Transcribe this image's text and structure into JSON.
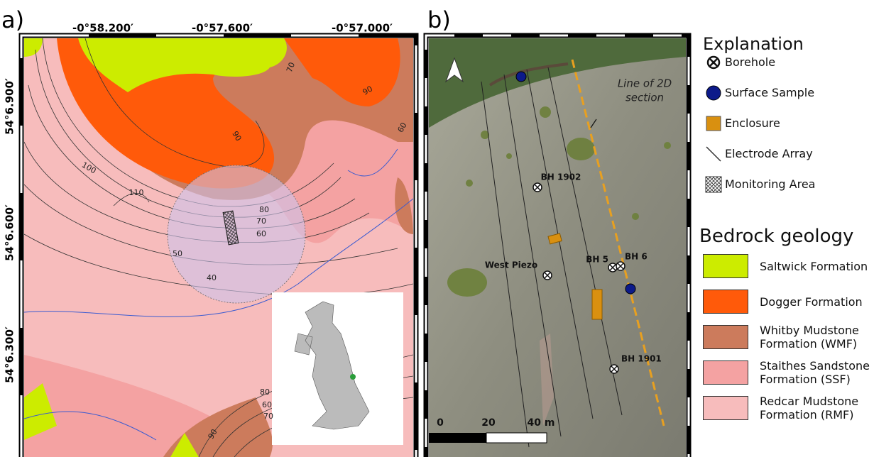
{
  "panels": [
    {
      "label": "a)",
      "longitudes": [
        "-0°58.200′",
        "-0°57.600′",
        "-0°57.000′"
      ],
      "latitudes": [
        "54°6.900′",
        "54°6.600′",
        "54°6.300′"
      ],
      "contour_labels": [
        70,
        90,
        60,
        90,
        100,
        110,
        80,
        70,
        60,
        50,
        40,
        60,
        70,
        80,
        90
      ]
    },
    {
      "label": "b)",
      "section_label": [
        "Line of 2D",
        "section"
      ],
      "boreholes": [
        "BH 1902",
        "West Piezo",
        "BH 5",
        "BH 6",
        "BH 1901"
      ],
      "scale_bar": [
        "0",
        "20",
        "40 m"
      ]
    }
  ],
  "legend": {
    "explanation_title": "Explanation",
    "explanation_items": [
      "Borehole",
      "Surface Sample",
      "Enclosure",
      "Electrode Array",
      "Monitoring Area"
    ],
    "geology_title": "Bedrock geology",
    "geology_items": [
      {
        "label": "Saltwick Formation",
        "color": "#ccec00"
      },
      {
        "label": "Dogger Formation",
        "color": "#ff5a0a"
      },
      {
        "label": "Whitby Mudstone Formation (WMF)",
        "color": "#cc7b5c"
      },
      {
        "label": "Staithes Sandstone Formation (SSF)",
        "color": "#f4a2a2"
      },
      {
        "label": "Redcar Mudstone Formation (RMF)",
        "color": "#f7bcbc"
      }
    ]
  }
}
